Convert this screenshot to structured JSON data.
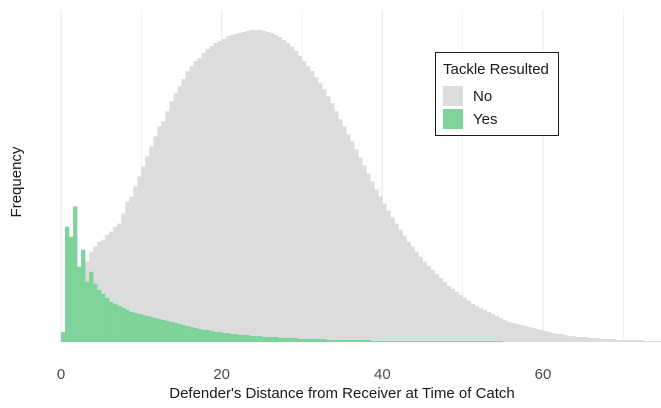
{
  "chart_data": {
    "type": "histogram",
    "title": "",
    "xlabel": "Defender's Distance from Receiver at Time of Catch",
    "ylabel": "Frequency",
    "xlim": [
      -1,
      72
    ],
    "x_ticks": [
      0,
      20,
      40,
      60
    ],
    "grid": true,
    "y_axis_tick_labels_shown": false,
    "bar_mode": "overlay",
    "legend": {
      "title": "Tackle Resulted",
      "placement": "top-right",
      "entries": [
        "No",
        "Yes"
      ]
    },
    "bins": {
      "start": 0,
      "width": 0.5
    },
    "series": [
      {
        "name": "No",
        "color": "#dcdcdc",
        "values": [
          5,
          17,
          25,
          40,
          60,
          75,
          80,
          90,
          95,
          100,
          102,
          107,
          110,
          115,
          118,
          128,
          140,
          145,
          155,
          165,
          175,
          185,
          195,
          205,
          215,
          220,
          230,
          240,
          248,
          255,
          262,
          270,
          275,
          280,
          283,
          288,
          292,
          295,
          298,
          300,
          302,
          305,
          306,
          307,
          308,
          309,
          310,
          311,
          311,
          311,
          310,
          309,
          308,
          306,
          304,
          301,
          298,
          294,
          290,
          285,
          280,
          275,
          270,
          264,
          258,
          252,
          245,
          238,
          230,
          222,
          215,
          207,
          200,
          192,
          184,
          176,
          168,
          160,
          152,
          145,
          138,
          131,
          124,
          118,
          112,
          106,
          100,
          95,
          90,
          85,
          80,
          76,
          72,
          68,
          64,
          60,
          56,
          53,
          50,
          47,
          44,
          41,
          38,
          36,
          34,
          32,
          30,
          28,
          26,
          24,
          22,
          20,
          19,
          18,
          17,
          16,
          15,
          14,
          13,
          12,
          11,
          10,
          9,
          8,
          8,
          7,
          6,
          6,
          5,
          5,
          5,
          4,
          4,
          4,
          3,
          3,
          3,
          3,
          2,
          2,
          2,
          2,
          2,
          2,
          2,
          1,
          1,
          1,
          1,
          1,
          1,
          1,
          1,
          1,
          1,
          1,
          1
        ]
      },
      {
        "name": "Yes",
        "color": "#7dd39a",
        "values": [
          10,
          115,
          105,
          135,
          75,
          92,
          60,
          70,
          58,
          52,
          48,
          44,
          40,
          38,
          36,
          34,
          32,
          30,
          29,
          28,
          27,
          26,
          25,
          24,
          23,
          22,
          21,
          20,
          19,
          18,
          17,
          16,
          15,
          14,
          13,
          12,
          12,
          11,
          10,
          10,
          9,
          9,
          8,
          8,
          7,
          7,
          7,
          6,
          6,
          6,
          5,
          5,
          5,
          5,
          4,
          4,
          4,
          4,
          4,
          3,
          3,
          3,
          3,
          3,
          3,
          3,
          2,
          2,
          2,
          2,
          2,
          2,
          2,
          2,
          2,
          2,
          2,
          1,
          1,
          1,
          1,
          1,
          1,
          1,
          1,
          1,
          1,
          1,
          1,
          1,
          1,
          1,
          1,
          1,
          1,
          1,
          1,
          1,
          1,
          1,
          1,
          1,
          1,
          1,
          1,
          1,
          1,
          1,
          1,
          1
        ]
      }
    ]
  }
}
